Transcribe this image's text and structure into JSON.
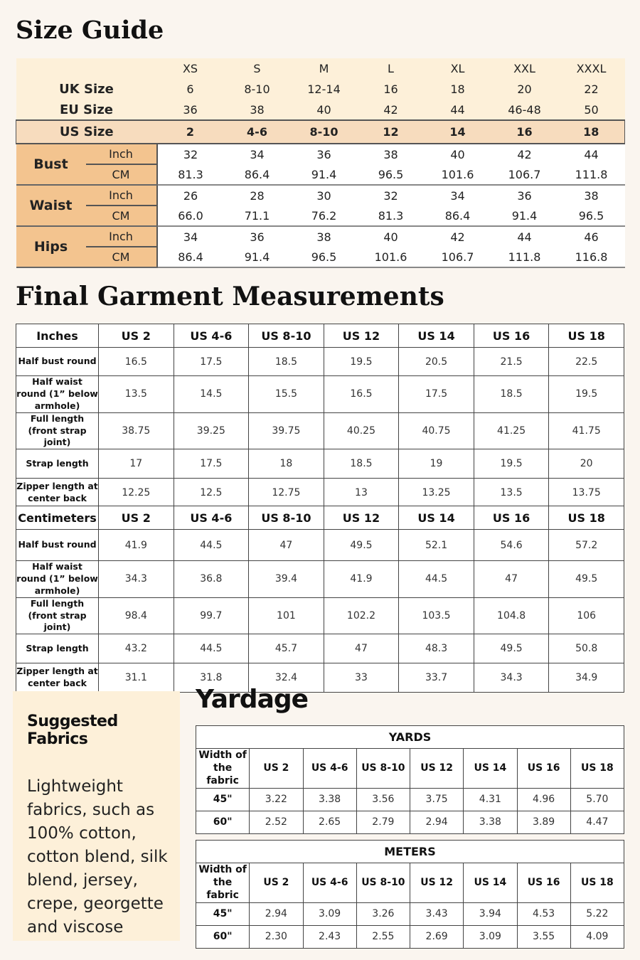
{
  "size_guide": {
    "title": "Size Guide",
    "letter_sizes": [
      "XS",
      "S",
      "M",
      "L",
      "XL",
      "XXL",
      "XXXL"
    ],
    "uk_label": "UK Size",
    "uk": [
      "6",
      "8-10",
      "12-14",
      "16",
      "18",
      "20",
      "22"
    ],
    "eu_label": "EU Size",
    "eu": [
      "36",
      "38",
      "40",
      "42",
      "44",
      "46-48",
      "50"
    ],
    "us_label": "US Size",
    "us": [
      "2",
      "4-6",
      "8-10",
      "12",
      "14",
      "16",
      "18"
    ],
    "measures": [
      {
        "name": "Bust",
        "inch_label": "Inch",
        "cm_label": "CM",
        "inch": [
          "32",
          "34",
          "36",
          "38",
          "40",
          "42",
          "44"
        ],
        "cm": [
          "81.3",
          "86.4",
          "91.4",
          "96.5",
          "101.6",
          "106.7",
          "111.8"
        ]
      },
      {
        "name": "Waist",
        "inch_label": "Inch",
        "cm_label": "CM",
        "inch": [
          "26",
          "28",
          "30",
          "32",
          "34",
          "36",
          "38"
        ],
        "cm": [
          "66.0",
          "71.1",
          "76.2",
          "81.3",
          "86.4",
          "91.4",
          "96.5"
        ]
      },
      {
        "name": "Hips",
        "inch_label": "Inch",
        "cm_label": "CM",
        "inch": [
          "34",
          "36",
          "38",
          "40",
          "42",
          "44",
          "46"
        ],
        "cm": [
          "86.4",
          "91.4",
          "96.5",
          "101.6",
          "106.7",
          "111.8",
          "116.8"
        ]
      }
    ]
  },
  "garment": {
    "title": "Final Garment Measurements",
    "columns": [
      "US 2",
      "US 4-6",
      "US 8-10",
      "US 12",
      "US 14",
      "US 16",
      "US 18"
    ],
    "inches": {
      "header": "Inches",
      "rows": [
        {
          "label": "Half bust round",
          "values": [
            "16.5",
            "17.5",
            "18.5",
            "19.5",
            "20.5",
            "21.5",
            "22.5"
          ]
        },
        {
          "label": "Half waist round (1” below armhole)",
          "values": [
            "13.5",
            "14.5",
            "15.5",
            "16.5",
            "17.5",
            "18.5",
            "19.5"
          ]
        },
        {
          "label": "Full length (front strap joint)",
          "values": [
            "38.75",
            "39.25",
            "39.75",
            "40.25",
            "40.75",
            "41.25",
            "41.75"
          ]
        },
        {
          "label": "Strap length",
          "values": [
            "17",
            "17.5",
            "18",
            "18.5",
            "19",
            "19.5",
            "20"
          ]
        },
        {
          "label": "Zipper length at center back",
          "values": [
            "12.25",
            "12.5",
            "12.75",
            "13",
            "13.25",
            "13.5",
            "13.75"
          ]
        }
      ]
    },
    "centimeters": {
      "header": "Centimeters",
      "rows": [
        {
          "label": "Half bust round",
          "values": [
            "41.9",
            "44.5",
            "47",
            "49.5",
            "52.1",
            "54.6",
            "57.2"
          ]
        },
        {
          "label": "Half waist round (1” below armhole)",
          "values": [
            "34.3",
            "36.8",
            "39.4",
            "41.9",
            "44.5",
            "47",
            "49.5"
          ]
        },
        {
          "label": "Full length (front strap joint)",
          "values": [
            "98.4",
            "99.7",
            "101",
            "102.2",
            "103.5",
            "104.8",
            "106"
          ]
        },
        {
          "label": "Strap length",
          "values": [
            "43.2",
            "44.5",
            "45.7",
            "47",
            "48.3",
            "49.5",
            "50.8"
          ]
        },
        {
          "label": "Zipper length at center back",
          "values": [
            "31.1",
            "31.8",
            "32.4",
            "33",
            "33.7",
            "34.3",
            "34.9"
          ]
        }
      ]
    }
  },
  "fabrics": {
    "title": "Suggested Fabrics",
    "text": "Lightweight fabrics, such as 100% cotton, cotton blend, silk blend, jersey, crepe, georgette and viscose"
  },
  "yardage": {
    "title": "Yardage",
    "width_label": "Width of the fabric",
    "columns": [
      "US 2",
      "US 4-6",
      "US 8-10",
      "US 12",
      "US 14",
      "US 16",
      "US 18"
    ],
    "yards": {
      "caption": "YARDS",
      "rows": [
        {
          "label": "45\"",
          "values": [
            "3.22",
            "3.38",
            "3.56",
            "3.75",
            "4.31",
            "4.96",
            "5.70"
          ]
        },
        {
          "label": "60\"",
          "values": [
            "2.52",
            "2.65",
            "2.79",
            "2.94",
            "3.38",
            "3.89",
            "4.47"
          ]
        }
      ]
    },
    "meters": {
      "caption": "METERS",
      "rows": [
        {
          "label": "45\"",
          "values": [
            "2.94",
            "3.09",
            "3.26",
            "3.43",
            "3.94",
            "4.53",
            "5.22"
          ]
        },
        {
          "label": "60\"",
          "values": [
            "2.30",
            "2.43",
            "2.55",
            "2.69",
            "3.09",
            "3.55",
            "4.09"
          ]
        }
      ]
    }
  }
}
